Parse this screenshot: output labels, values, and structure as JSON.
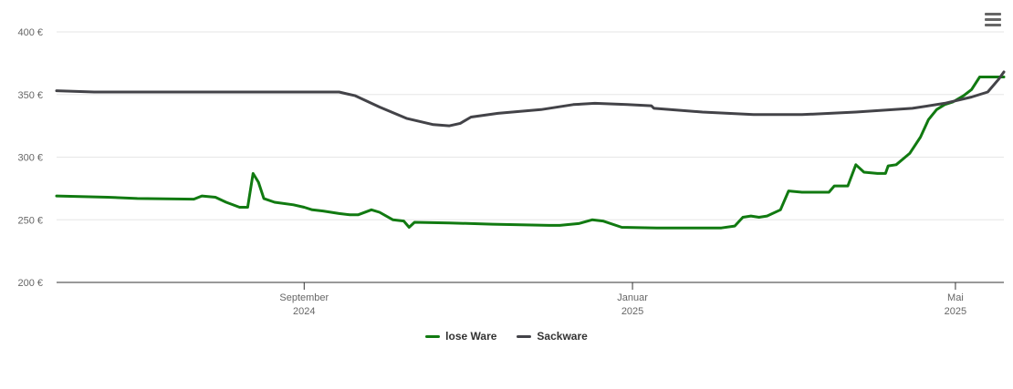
{
  "chart_data": {
    "type": "line",
    "title": "",
    "xlabel": "",
    "ylabel": "",
    "ylim": [
      200,
      400
    ],
    "yticks": [
      200,
      250,
      300,
      350,
      400
    ],
    "ytick_labels": [
      "200 €",
      "250 €",
      "300 €",
      "350 €",
      "400 €"
    ],
    "xlim": [
      "2024-06-01",
      "2025-05-19"
    ],
    "xticks": [
      {
        "date": "2024-09-01",
        "month": "September",
        "year": "2024"
      },
      {
        "date": "2025-01-01",
        "month": "Januar",
        "year": "2025"
      },
      {
        "date": "2025-05-01",
        "month": "Mai",
        "year": "2025"
      }
    ],
    "grid": true,
    "legend_position": "bottom",
    "series": [
      {
        "name": "lose Ware",
        "color": "#117a11",
        "points": [
          [
            "2024-06-01",
            269
          ],
          [
            "2024-06-20",
            268
          ],
          [
            "2024-07-01",
            267
          ],
          [
            "2024-07-22",
            266.5
          ],
          [
            "2024-07-25",
            269
          ],
          [
            "2024-07-30",
            268
          ],
          [
            "2024-08-03",
            264
          ],
          [
            "2024-08-08",
            260
          ],
          [
            "2024-08-11",
            260
          ],
          [
            "2024-08-13",
            287
          ],
          [
            "2024-08-15",
            280
          ],
          [
            "2024-08-17",
            267
          ],
          [
            "2024-08-21",
            264
          ],
          [
            "2024-08-28",
            262
          ],
          [
            "2024-09-01",
            260
          ],
          [
            "2024-09-04",
            258
          ],
          [
            "2024-09-08",
            257
          ],
          [
            "2024-09-14",
            255
          ],
          [
            "2024-09-18",
            254
          ],
          [
            "2024-09-21",
            254
          ],
          [
            "2024-09-26",
            258
          ],
          [
            "2024-09-29",
            256
          ],
          [
            "2024-10-04",
            250
          ],
          [
            "2024-10-08",
            249
          ],
          [
            "2024-10-10",
            244
          ],
          [
            "2024-10-12",
            248
          ],
          [
            "2024-10-25",
            247.5
          ],
          [
            "2024-11-10",
            246.5
          ],
          [
            "2024-12-01",
            245.5
          ],
          [
            "2024-12-05",
            245.5
          ],
          [
            "2024-12-12",
            247
          ],
          [
            "2024-12-17",
            250
          ],
          [
            "2024-12-21",
            249
          ],
          [
            "2024-12-28",
            244
          ],
          [
            "2025-01-10",
            243.5
          ],
          [
            "2025-01-27",
            243.5
          ],
          [
            "2025-02-03",
            243.5
          ],
          [
            "2025-02-08",
            245
          ],
          [
            "2025-02-11",
            252
          ],
          [
            "2025-02-14",
            253
          ],
          [
            "2025-02-17",
            252
          ],
          [
            "2025-02-20",
            253
          ],
          [
            "2025-02-25",
            258
          ],
          [
            "2025-02-28",
            273
          ],
          [
            "2025-03-05",
            272
          ],
          [
            "2025-03-15",
            272
          ],
          [
            "2025-03-17",
            277
          ],
          [
            "2025-03-22",
            277
          ],
          [
            "2025-03-25",
            294
          ],
          [
            "2025-03-28",
            288
          ],
          [
            "2025-04-02",
            287
          ],
          [
            "2025-04-05",
            287
          ],
          [
            "2025-04-06",
            293
          ],
          [
            "2025-04-09",
            294
          ],
          [
            "2025-04-14",
            303
          ],
          [
            "2025-04-18",
            316
          ],
          [
            "2025-04-21",
            330
          ],
          [
            "2025-04-24",
            338
          ],
          [
            "2025-04-27",
            342
          ],
          [
            "2025-04-30",
            344
          ],
          [
            "2025-05-04",
            349
          ],
          [
            "2025-05-07",
            354
          ],
          [
            "2025-05-10",
            364
          ],
          [
            "2025-05-19",
            364
          ]
        ]
      },
      {
        "name": "Sackware",
        "color": "#434348",
        "points": [
          [
            "2024-06-01",
            353
          ],
          [
            "2024-06-15",
            352
          ],
          [
            "2024-08-01",
            352
          ],
          [
            "2024-09-09",
            352
          ],
          [
            "2024-09-14",
            352
          ],
          [
            "2024-09-20",
            349
          ],
          [
            "2024-09-29",
            340
          ],
          [
            "2024-10-09",
            331
          ],
          [
            "2024-10-19",
            326
          ],
          [
            "2024-10-25",
            325
          ],
          [
            "2024-10-29",
            327
          ],
          [
            "2024-11-02",
            332
          ],
          [
            "2024-11-12",
            335
          ],
          [
            "2024-11-28",
            338
          ],
          [
            "2024-12-10",
            342
          ],
          [
            "2024-12-18",
            343
          ],
          [
            "2024-12-30",
            342
          ],
          [
            "2025-01-08",
            341
          ],
          [
            "2025-01-09",
            339
          ],
          [
            "2025-01-27",
            336
          ],
          [
            "2025-02-15",
            334
          ],
          [
            "2025-03-05",
            334
          ],
          [
            "2025-03-25",
            336
          ],
          [
            "2025-04-15",
            339
          ],
          [
            "2025-04-27",
            343
          ],
          [
            "2025-05-07",
            348
          ],
          [
            "2025-05-13",
            352
          ],
          [
            "2025-05-17",
            362
          ],
          [
            "2025-05-19",
            368
          ]
        ]
      }
    ]
  },
  "toolbar": {
    "menu_icon": "hamburger-menu-icon"
  }
}
